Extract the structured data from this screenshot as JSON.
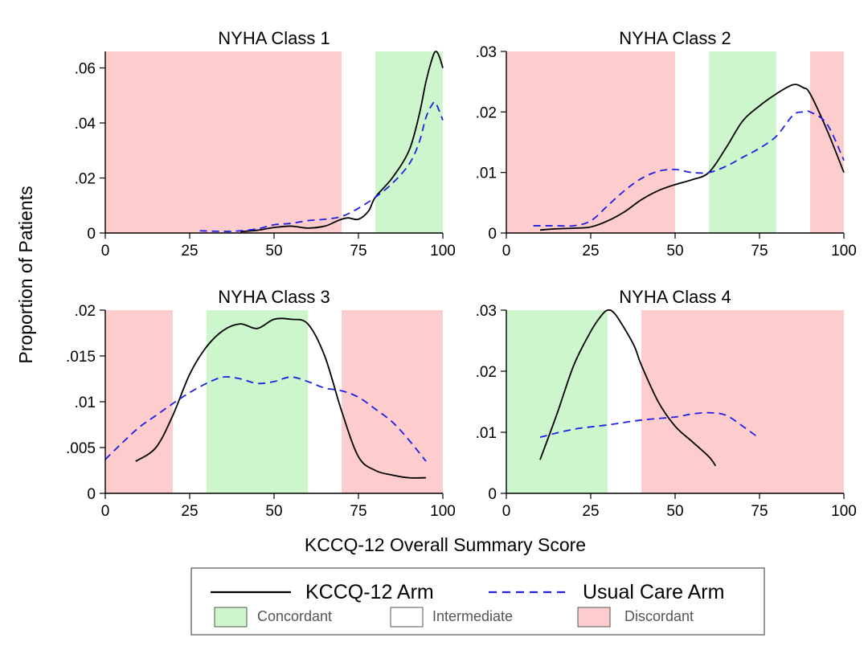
{
  "chart_data": {
    "type": "line",
    "ylabel": "Proportion of Patients",
    "xlabel": "KCCQ-12 Overall Summary Score",
    "legend": {
      "placement": "bottom",
      "series": [
        {
          "label": "KCCQ-12 Arm",
          "color": "#000000",
          "style": "solid"
        },
        {
          "label": "Usual Care Arm",
          "color": "#1f1fe6",
          "style": "dashed"
        }
      ],
      "regions": [
        {
          "label": "Concordant",
          "color": "#cdf6cd"
        },
        {
          "label": "Intermediate",
          "color": "#ffffff"
        },
        {
          "label": "Discordant",
          "color": "#fdcdcd"
        }
      ]
    },
    "panels": [
      {
        "title": "NYHA Class 1",
        "xlim": [
          0,
          100
        ],
        "ylim": [
          0,
          0.066
        ],
        "xticks": [
          0,
          25,
          50,
          75,
          100
        ],
        "xtick_labels": [
          "0",
          "25",
          "50",
          "75",
          "100"
        ],
        "yticks": [
          0,
          0.02,
          0.04,
          0.06
        ],
        "ytick_labels": [
          "0",
          ".02",
          ".04",
          ".06"
        ],
        "regions": [
          {
            "type": "Discordant",
            "from": 0,
            "to": 70
          },
          {
            "type": "Concordant",
            "from": 80,
            "to": 100
          }
        ],
        "series": [
          {
            "name": "KCCQ-12 Arm",
            "x": [
              40,
              45,
              50,
              55,
              60,
              65,
              68,
              70,
              72,
              75,
              78,
              80,
              85,
              90,
              93,
              95,
              97,
              98,
              99,
              100
            ],
            "y": [
              0.0005,
              0.001,
              0.002,
              0.0025,
              0.0018,
              0.0025,
              0.004,
              0.005,
              0.0055,
              0.005,
              0.008,
              0.013,
              0.02,
              0.03,
              0.043,
              0.055,
              0.064,
              0.066,
              0.064,
              0.06
            ]
          },
          {
            "name": "Usual Care Arm",
            "x": [
              28,
              35,
              40,
              45,
              50,
              55,
              60,
              65,
              70,
              75,
              80,
              85,
              90,
              93,
              95,
              97,
              98,
              100
            ],
            "y": [
              0.0008,
              0.0006,
              0.0008,
              0.0015,
              0.003,
              0.0035,
              0.0045,
              0.005,
              0.006,
              0.009,
              0.013,
              0.018,
              0.025,
              0.033,
              0.042,
              0.047,
              0.047,
              0.041
            ]
          }
        ]
      },
      {
        "title": "NYHA Class 2",
        "xlim": [
          0,
          100
        ],
        "ylim": [
          0,
          0.03
        ],
        "xticks": [
          0,
          25,
          50,
          75,
          100
        ],
        "xtick_labels": [
          "0",
          "25",
          "50",
          "75",
          "100"
        ],
        "yticks": [
          0,
          0.01,
          0.02,
          0.03
        ],
        "ytick_labels": [
          "0",
          ".01",
          ".02",
          ".03"
        ],
        "regions": [
          {
            "type": "Discordant",
            "from": 0,
            "to": 50
          },
          {
            "type": "Concordant",
            "from": 60,
            "to": 80
          },
          {
            "type": "Discordant",
            "from": 90,
            "to": 100
          }
        ],
        "series": [
          {
            "name": "KCCQ-12 Arm",
            "x": [
              10,
              15,
              20,
              25,
              30,
              35,
              40,
              45,
              50,
              55,
              60,
              65,
              70,
              75,
              80,
              85,
              88,
              90,
              95,
              100
            ],
            "y": [
              0.0005,
              0.0007,
              0.0008,
              0.001,
              0.002,
              0.0035,
              0.0055,
              0.007,
              0.008,
              0.0088,
              0.01,
              0.014,
              0.0185,
              0.021,
              0.023,
              0.0245,
              0.024,
              0.023,
              0.017,
              0.01
            ]
          },
          {
            "name": "Usual Care Arm",
            "x": [
              8,
              15,
              20,
              25,
              30,
              35,
              40,
              45,
              50,
              55,
              60,
              65,
              70,
              75,
              80,
              85,
              88,
              90,
              95,
              100
            ],
            "y": [
              0.0012,
              0.0012,
              0.0012,
              0.002,
              0.0045,
              0.007,
              0.009,
              0.0102,
              0.0105,
              0.01,
              0.01,
              0.011,
              0.0125,
              0.014,
              0.016,
              0.0195,
              0.02,
              0.02,
              0.018,
              0.012
            ]
          }
        ]
      },
      {
        "title": "NYHA Class 3",
        "xlim": [
          0,
          100
        ],
        "ylim": [
          0,
          0.02
        ],
        "xticks": [
          0,
          25,
          50,
          75,
          100
        ],
        "xtick_labels": [
          "0",
          "25",
          "50",
          "75",
          "100"
        ],
        "yticks": [
          0,
          0.005,
          0.01,
          0.015,
          0.02
        ],
        "ytick_labels": [
          "0",
          ".005",
          ".01",
          ".015",
          ".02"
        ],
        "regions": [
          {
            "type": "Discordant",
            "from": 0,
            "to": 20
          },
          {
            "type": "Concordant",
            "from": 30,
            "to": 60
          },
          {
            "type": "Discordant",
            "from": 70,
            "to": 100
          }
        ],
        "series": [
          {
            "name": "KCCQ-12 Arm",
            "x": [
              9,
              15,
              20,
              25,
              30,
              35,
              40,
              45,
              50,
              55,
              60,
              65,
              70,
              75,
              80,
              85,
              90,
              95
            ],
            "y": [
              0.0035,
              0.005,
              0.0085,
              0.013,
              0.016,
              0.0178,
              0.0185,
              0.018,
              0.019,
              0.019,
              0.0185,
              0.015,
              0.009,
              0.004,
              0.0025,
              0.002,
              0.0017,
              0.0017
            ]
          },
          {
            "name": "Usual Care Arm",
            "x": [
              0,
              5,
              10,
              15,
              20,
              25,
              30,
              35,
              40,
              45,
              50,
              55,
              60,
              65,
              70,
              75,
              80,
              85,
              90,
              95
            ],
            "y": [
              0.0037,
              0.0055,
              0.0072,
              0.0085,
              0.0098,
              0.011,
              0.012,
              0.0127,
              0.0125,
              0.012,
              0.0122,
              0.0127,
              0.0122,
              0.0115,
              0.0112,
              0.0105,
              0.0092,
              0.0078,
              0.0058,
              0.0035
            ]
          }
        ]
      },
      {
        "title": "NYHA Class 4",
        "xlim": [
          0,
          100
        ],
        "ylim": [
          0,
          0.03
        ],
        "xticks": [
          0,
          25,
          50,
          75,
          100
        ],
        "xtick_labels": [
          "0",
          "25",
          "50",
          "75",
          "100"
        ],
        "yticks": [
          0,
          0.01,
          0.02,
          0.03
        ],
        "ytick_labels": [
          "0",
          ".01",
          ".02",
          ".03"
        ],
        "regions": [
          {
            "type": "Concordant",
            "from": 0,
            "to": 30
          },
          {
            "type": "Discordant",
            "from": 40,
            "to": 100
          }
        ],
        "series": [
          {
            "name": "KCCQ-12 Arm",
            "x": [
              10,
              15,
              20,
              25,
              28,
              30,
              32,
              35,
              38,
              40,
              45,
              50,
              55,
              60,
              62
            ],
            "y": [
              0.0055,
              0.013,
              0.021,
              0.0265,
              0.029,
              0.03,
              0.0295,
              0.027,
              0.024,
              0.021,
              0.015,
              0.011,
              0.0085,
              0.006,
              0.0045
            ]
          },
          {
            "name": "Usual Care Arm",
            "x": [
              10,
              20,
              30,
              40,
              50,
              55,
              60,
              65,
              70,
              75
            ],
            "y": [
              0.0092,
              0.0105,
              0.0112,
              0.012,
              0.0125,
              0.013,
              0.0132,
              0.0128,
              0.011,
              0.009
            ]
          }
        ]
      }
    ]
  }
}
